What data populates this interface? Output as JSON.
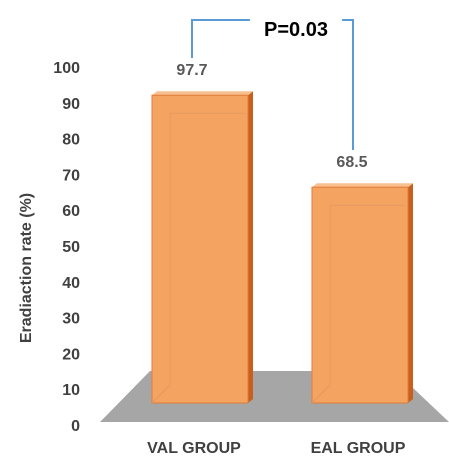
{
  "chart_data": {
    "type": "bar",
    "categories": [
      "VAL GROUP",
      "EAL GROUP"
    ],
    "values": [
      97.7,
      68.5
    ],
    "data_labels": [
      "97.7",
      "68.5"
    ],
    "ylabel": "Eradiaction rate  (%)",
    "ylim": [
      0,
      100
    ],
    "yticks": [
      0,
      10,
      20,
      30,
      40,
      50,
      60,
      70,
      80,
      90,
      100
    ],
    "annotation": "P=0.03",
    "grid": false,
    "legend": "none",
    "bar_color": "#f4a460",
    "bracket_color": "#5b9bd5",
    "floor_color": "#a6a6a6"
  }
}
